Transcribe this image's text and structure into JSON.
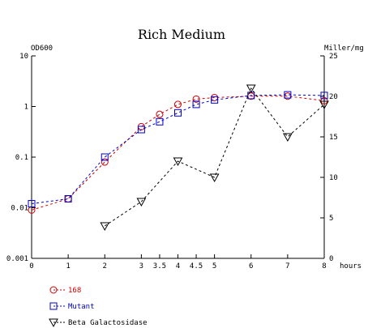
{
  "chart_data": {
    "type": "line",
    "title": "Rich Medium",
    "left_axis": {
      "label": "OD600",
      "scale": "log",
      "range": [
        0.001,
        10
      ],
      "ticks": [
        {
          "value": 0.001,
          "label": "0.001"
        },
        {
          "value": 0.01,
          "label": "0.01"
        },
        {
          "value": 0.1,
          "label": "0.1"
        },
        {
          "value": 1,
          "label": "1"
        },
        {
          "value": 10,
          "label": "10"
        }
      ]
    },
    "right_axis": {
      "label": "Miller/mg",
      "scale": "linear",
      "range": [
        0,
        25
      ],
      "ticks": [
        {
          "value": 0,
          "label": "0"
        },
        {
          "value": 5,
          "label": "5"
        },
        {
          "value": 10,
          "label": "10"
        },
        {
          "value": 15,
          "label": "15"
        },
        {
          "value": 20,
          "label": "20"
        },
        {
          "value": 25,
          "label": "25"
        }
      ]
    },
    "x_axis": {
      "label": "hours",
      "range": [
        0,
        8
      ],
      "ticks": [
        {
          "value": 0,
          "label": "0"
        },
        {
          "value": 1,
          "label": "1"
        },
        {
          "value": 2,
          "label": "2"
        },
        {
          "value": 3,
          "label": "3"
        },
        {
          "value": 3.5,
          "label": "3.5"
        },
        {
          "value": 4,
          "label": "4"
        },
        {
          "value": 4.5,
          "label": "4.5"
        },
        {
          "value": 5,
          "label": "5"
        },
        {
          "value": 6,
          "label": "6"
        },
        {
          "value": 7,
          "label": "7"
        },
        {
          "value": 8,
          "label": "8"
        }
      ]
    },
    "series": [
      {
        "name": "168",
        "axis": "left",
        "marker": "circle",
        "color": "#cc0000",
        "x": [
          0,
          1,
          2,
          3,
          3.5,
          4,
          4.5,
          5,
          6,
          7,
          8
        ],
        "y": [
          0.009,
          0.015,
          0.08,
          0.4,
          0.7,
          1.1,
          1.4,
          1.5,
          1.6,
          1.6,
          1.3
        ]
      },
      {
        "name": "Mutant",
        "axis": "left",
        "marker": "square",
        "color": "#0000cc",
        "x": [
          0,
          1,
          2,
          3,
          3.5,
          4,
          4.5,
          5,
          6,
          7,
          8
        ],
        "y": [
          0.012,
          0.015,
          0.1,
          0.35,
          0.5,
          0.75,
          1.1,
          1.35,
          1.65,
          1.7,
          1.65
        ]
      },
      {
        "name": "Beta Galactosidase",
        "axis": "right",
        "marker": "triangle-down",
        "color": "#000000",
        "x": [
          2,
          3,
          4,
          5,
          6,
          7,
          8
        ],
        "y": [
          4,
          7,
          12,
          10,
          21,
          15,
          19
        ]
      }
    ],
    "legend_position": "bottom-left",
    "grid": false
  }
}
